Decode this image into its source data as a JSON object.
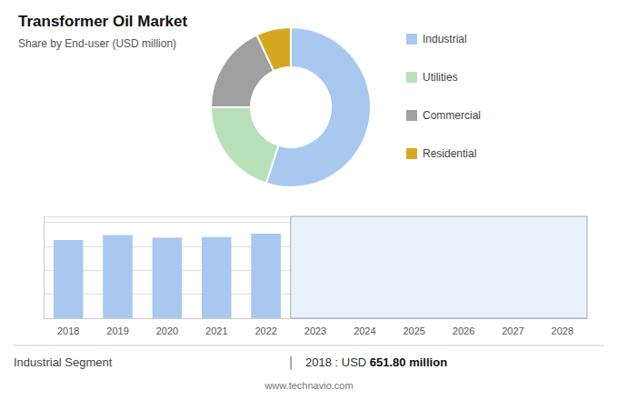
{
  "chart_data": [
    {
      "type": "pie",
      "title": "Transformer Oil Market",
      "subtitle": "Share by End-user (USD million)",
      "categories": [
        "Industrial",
        "Utilities",
        "Commercial",
        "Residential"
      ],
      "values": [
        55,
        20,
        18,
        7
      ],
      "colors": [
        "#a8c8f0",
        "#b8e0b8",
        "#a0a0a0",
        "#d4a820"
      ],
      "legend": "right"
    },
    {
      "type": "bar",
      "categories": [
        "2018",
        "2019",
        "2020",
        "2021",
        "2022",
        "2023",
        "2024",
        "2025",
        "2026",
        "2027",
        "2028"
      ],
      "values": [
        651.8,
        695,
        672,
        678,
        705,
        null,
        null,
        null,
        null,
        null,
        null
      ],
      "color": "#a8c8f0",
      "ylim": [
        0,
        850
      ],
      "yticks": [
        200,
        400,
        600,
        800
      ],
      "grid": true,
      "tick_labels": "x",
      "annotations": [
        "Industrial Segment",
        "|",
        "2018 : USD ",
        "651.80 million",
        "www.technavio.com"
      ]
    }
  ]
}
